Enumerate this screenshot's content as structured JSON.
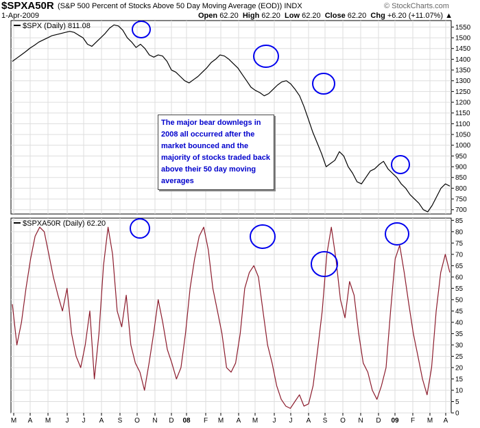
{
  "header": {
    "symbol": "$SPXA50R",
    "description": "(S&P 500 Percent of Stocks Above 50 Day Moving Average (EOD))  INDX",
    "date": "1-Apr-2009",
    "credit": "© StockCharts.com",
    "open_label": "Open",
    "open": "62.20",
    "high_label": "High",
    "high": "62.20",
    "low_label": "Low",
    "low": "62.20",
    "close_label": "Close",
    "close": "62.20",
    "chg_label": "Chg",
    "chg": "+6.20 (+11.07%)"
  },
  "annotation": "The major bear downlegs in 2008 all occurred after the market bounced and the majority of stocks traded back above their 50 day moving averages",
  "colors": {
    "spx_line": "#000000",
    "breadth_line": "#8b1a2b",
    "highlight_circle": "#0000ee",
    "grid": "#dddddd",
    "annotation_text": "#0000cc"
  },
  "chart_data": [
    {
      "type": "line",
      "label": "$SPX (Daily) 811.08",
      "ylim": [
        680,
        1580
      ],
      "yticks": [
        700,
        750,
        800,
        850,
        900,
        950,
        1000,
        1050,
        1100,
        1150,
        1200,
        1250,
        1300,
        1350,
        1400,
        1450,
        1500,
        1550
      ],
      "x_labels": [
        "M",
        "A",
        "M",
        "J",
        "J",
        "A",
        "S",
        "O",
        "N",
        "D",
        "08",
        "F",
        "M",
        "A",
        "M",
        "J",
        "J",
        "A",
        "S",
        "O",
        "N",
        "D",
        "09",
        "F",
        "M",
        "A"
      ],
      "x_label_emphasis": [
        "08",
        "09"
      ],
      "grid": true,
      "series": [
        {
          "values": [
            1390,
            1405,
            1420,
            1435,
            1452,
            1465,
            1480,
            1490,
            1500,
            1510,
            1515,
            1520,
            1525,
            1530,
            1525,
            1512,
            1500,
            1470,
            1460,
            1480,
            1500,
            1520,
            1545,
            1560,
            1555,
            1535,
            1500,
            1480,
            1455,
            1470,
            1450,
            1420,
            1410,
            1420,
            1415,
            1390,
            1350,
            1340,
            1320,
            1300,
            1290,
            1305,
            1320,
            1340,
            1360,
            1385,
            1400,
            1420,
            1415,
            1400,
            1380,
            1360,
            1330,
            1300,
            1270,
            1255,
            1245,
            1230,
            1240,
            1260,
            1280,
            1295,
            1300,
            1285,
            1260,
            1230,
            1180,
            1120,
            1060,
            1010,
            960,
            900,
            915,
            930,
            970,
            950,
            900,
            870,
            830,
            820,
            850,
            880,
            890,
            910,
            925,
            890,
            870,
            850,
            820,
            800,
            770,
            750,
            730,
            700,
            690,
            720,
            760,
            800,
            820,
            810
          ]
        }
      ],
      "highlight_circles": [
        "Oct 2007 peak",
        "May 2008 bounce",
        "Aug 2008 bounce",
        "Jan 2009 bounce"
      ]
    },
    {
      "type": "line",
      "label": "$SPXA50R (Daily) 62.20",
      "ylim": [
        0,
        86
      ],
      "yticks": [
        0,
        5,
        10,
        15,
        20,
        25,
        30,
        35,
        40,
        45,
        50,
        55,
        60,
        65,
        70,
        75,
        80,
        85
      ],
      "x_labels": [
        "M",
        "A",
        "M",
        "J",
        "J",
        "A",
        "S",
        "O",
        "N",
        "D",
        "08",
        "F",
        "M",
        "A",
        "M",
        "J",
        "J",
        "A",
        "S",
        "O",
        "N",
        "D",
        "09",
        "F",
        "M",
        "A"
      ],
      "grid": true,
      "series": [
        {
          "values": [
            48,
            30,
            40,
            55,
            68,
            78,
            82,
            80,
            70,
            60,
            52,
            45,
            55,
            35,
            25,
            20,
            30,
            45,
            15,
            35,
            65,
            82,
            70,
            45,
            38,
            52,
            30,
            22,
            18,
            10,
            22,
            35,
            50,
            40,
            28,
            22,
            15,
            20,
            35,
            55,
            68,
            78,
            82,
            72,
            55,
            45,
            35,
            20,
            18,
            22,
            35,
            55,
            62,
            65,
            60,
            45,
            30,
            22,
            12,
            6,
            3,
            2,
            5,
            8,
            3,
            4,
            12,
            28,
            45,
            70,
            82,
            68,
            50,
            42,
            58,
            52,
            35,
            22,
            18,
            10,
            6,
            12,
            20,
            45,
            68,
            74,
            62,
            48,
            35,
            25,
            15,
            8,
            20,
            45,
            62,
            70,
            62
          ]
        }
      ],
      "highlight_circles": [
        "Oct 2007 peak",
        "May 2008 peak",
        "Aug 2008 peak",
        "Jan 2009 peak"
      ]
    }
  ]
}
